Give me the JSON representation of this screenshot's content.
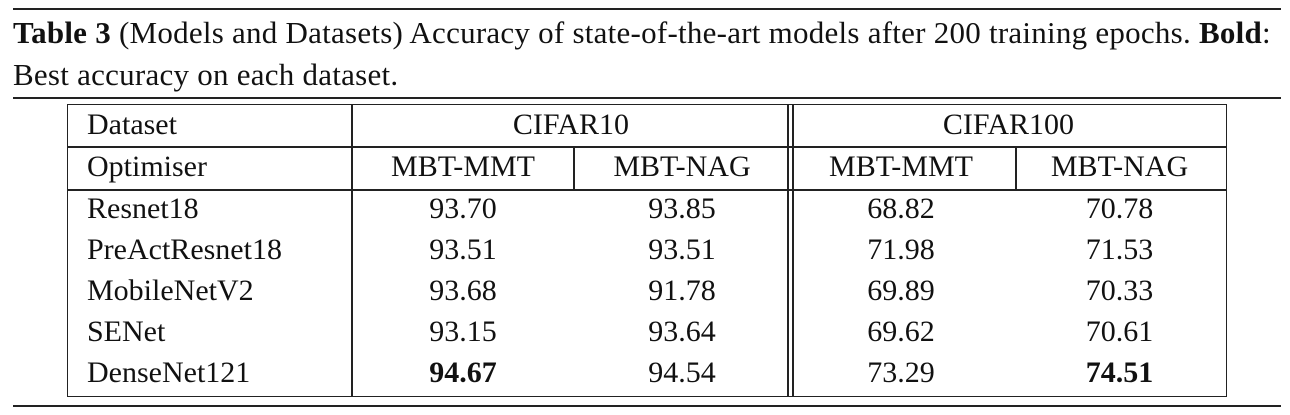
{
  "caption": {
    "table_label": "Table 3",
    "text_part1": " (Models and Datasets) Accuracy of state-of-the-art models after 200 training epochs. ",
    "bold_label": "Bold",
    "text_part2": ": Best accuracy on each dataset."
  },
  "table": {
    "dataset_header": "Dataset",
    "optimiser_header": "Optimiser",
    "datasets": [
      "CIFAR10",
      "CIFAR100"
    ],
    "optimisers": [
      "MBT-MMT",
      "MBT-NAG",
      "MBT-MMT",
      "MBT-NAG"
    ],
    "rows": [
      {
        "model": "Resnet18",
        "values": [
          "93.70",
          "93.85",
          "68.82",
          "70.78"
        ],
        "bold": [
          false,
          false,
          false,
          false
        ]
      },
      {
        "model": "PreActResnet18",
        "values": [
          "93.51",
          "93.51",
          "71.98",
          "71.53"
        ],
        "bold": [
          false,
          false,
          false,
          false
        ]
      },
      {
        "model": "MobileNetV2",
        "values": [
          "93.68",
          "91.78",
          "69.89",
          "70.33"
        ],
        "bold": [
          false,
          false,
          false,
          false
        ]
      },
      {
        "model": "SENet",
        "values": [
          "93.15",
          "93.64",
          "69.62",
          "70.61"
        ],
        "bold": [
          false,
          false,
          false,
          false
        ]
      },
      {
        "model": "DenseNet121",
        "values": [
          "94.67",
          "94.54",
          "73.29",
          "74.51"
        ],
        "bold": [
          true,
          false,
          false,
          true
        ]
      }
    ]
  }
}
